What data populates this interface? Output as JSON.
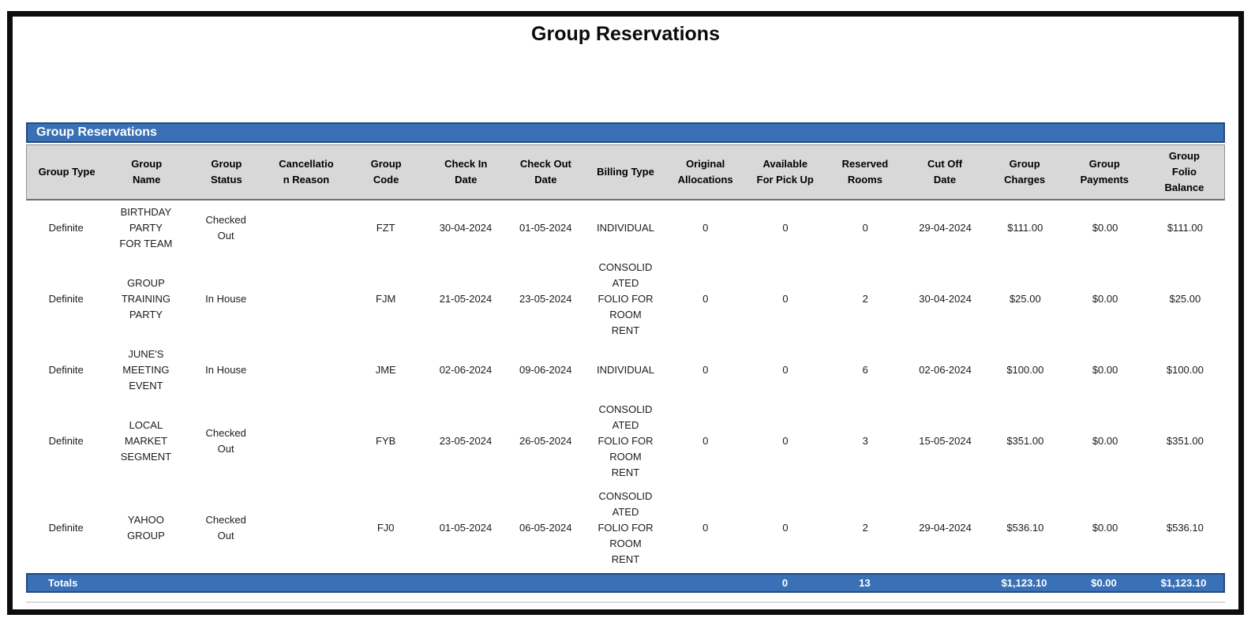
{
  "report": {
    "title": "Group Reservations",
    "section_header": "Group Reservations"
  },
  "table": {
    "columns": [
      "Group Type",
      "Group\nName",
      "Group\nStatus",
      "Cancellatio\nn Reason",
      "Group\nCode",
      "Check In\nDate",
      "Check Out\nDate",
      "Billing Type",
      "Original\nAllocations",
      "Available\nFor Pick Up",
      "Reserved\nRooms",
      "Cut Off\nDate",
      "Group\nCharges",
      "Group\nPayments",
      "Group\nFolio\nBalance"
    ],
    "rows": [
      {
        "group_type": "Definite",
        "group_name": "BIRTHDAY\nPARTY\nFOR TEAM",
        "group_status": "Checked\nOut",
        "cancellation_reason": "",
        "group_code": "FZT",
        "check_in_date": "30-04-2024",
        "check_out_date": "01-05-2024",
        "billing_type": "INDIVIDUAL",
        "original_allocations": "0",
        "available_for_pick_up": "0",
        "reserved_rooms": "0",
        "cut_off_date": "29-04-2024",
        "group_charges": "$111.00",
        "group_payments": "$0.00",
        "group_folio_balance": "$111.00"
      },
      {
        "group_type": "Definite",
        "group_name": "GROUP\nTRAINING\nPARTY",
        "group_status": "In House",
        "cancellation_reason": "",
        "group_code": "FJM",
        "check_in_date": "21-05-2024",
        "check_out_date": "23-05-2024",
        "billing_type": "CONSOLID\nATED\nFOLIO FOR\nROOM\nRENT",
        "original_allocations": "0",
        "available_for_pick_up": "0",
        "reserved_rooms": "2",
        "cut_off_date": "30-04-2024",
        "group_charges": "$25.00",
        "group_payments": "$0.00",
        "group_folio_balance": "$25.00"
      },
      {
        "group_type": "Definite",
        "group_name": "JUNE'S\nMEETING\nEVENT",
        "group_status": "In House",
        "cancellation_reason": "",
        "group_code": "JME",
        "check_in_date": "02-06-2024",
        "check_out_date": "09-06-2024",
        "billing_type": "INDIVIDUAL",
        "original_allocations": "0",
        "available_for_pick_up": "0",
        "reserved_rooms": "6",
        "cut_off_date": "02-06-2024",
        "group_charges": "$100.00",
        "group_payments": "$0.00",
        "group_folio_balance": "$100.00"
      },
      {
        "group_type": "Definite",
        "group_name": "LOCAL\nMARKET\nSEGMENT",
        "group_status": "Checked\nOut",
        "cancellation_reason": "",
        "group_code": "FYB",
        "check_in_date": "23-05-2024",
        "check_out_date": "26-05-2024",
        "billing_type": "CONSOLID\nATED\nFOLIO FOR\nROOM\nRENT",
        "original_allocations": "0",
        "available_for_pick_up": "0",
        "reserved_rooms": "3",
        "cut_off_date": "15-05-2024",
        "group_charges": "$351.00",
        "group_payments": "$0.00",
        "group_folio_balance": "$351.00"
      },
      {
        "group_type": "Definite",
        "group_name": "YAHOO\nGROUP",
        "group_status": "Checked\nOut",
        "cancellation_reason": "",
        "group_code": "FJ0",
        "check_in_date": "01-05-2024",
        "check_out_date": "06-05-2024",
        "billing_type": "CONSOLID\nATED\nFOLIO FOR\nROOM\nRENT",
        "original_allocations": "0",
        "available_for_pick_up": "0",
        "reserved_rooms": "2",
        "cut_off_date": "29-04-2024",
        "group_charges": "$536.10",
        "group_payments": "$0.00",
        "group_folio_balance": "$536.10"
      }
    ],
    "totals": {
      "label": "Totals",
      "available_for_pick_up": "0",
      "reserved_rooms": "13",
      "group_charges": "$1,123.10",
      "group_payments": "$0.00",
      "group_folio_balance": "$1,123.10"
    }
  },
  "colors": {
    "accent_blue": "#3a70b5",
    "accent_blue_border": "#27497c",
    "header_gray": "#d8d8d8",
    "frame_black": "#0d0d0d"
  }
}
